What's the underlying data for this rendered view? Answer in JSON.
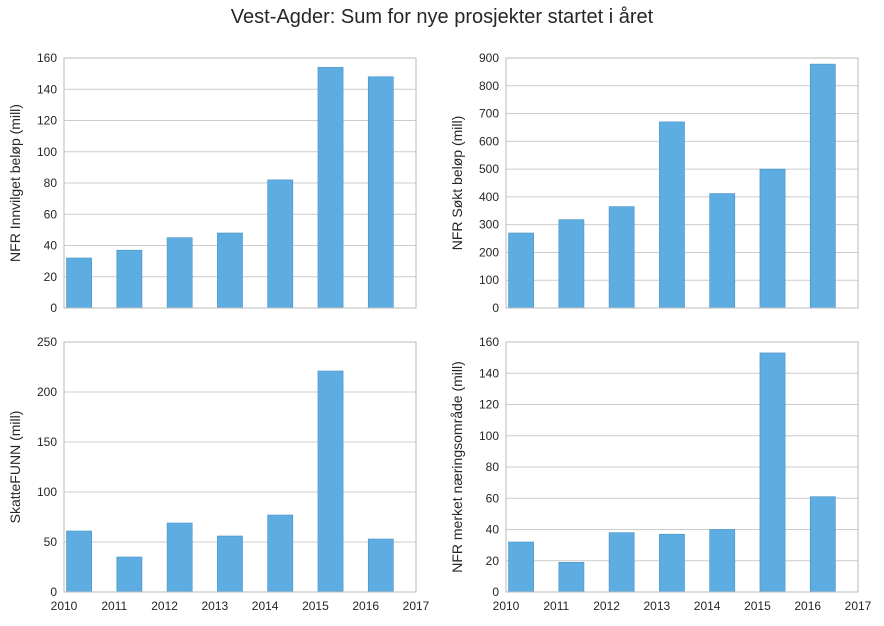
{
  "figure": {
    "suptitle": "Vest-Agder: Sum for nye prosjekter startet i året"
  },
  "style": {
    "bar_color": "#5DADE2",
    "bar_edge": "#4A90C2",
    "grid_color": "#CCCCCC",
    "axis_color": "#BBBBBB",
    "text_color": "#262626"
  },
  "chart_data": [
    {
      "type": "bar",
      "ylabel": "NFR Innvilget beløp (mill)",
      "xlim": [
        2010,
        2017
      ],
      "ylim": [
        0,
        160
      ],
      "yticks": [
        0,
        20,
        40,
        60,
        80,
        100,
        120,
        140,
        160
      ],
      "xticks": [],
      "grid": true,
      "categories": [
        2010,
        2011,
        2012,
        2013,
        2014,
        2015,
        2016
      ],
      "values": [
        32,
        37,
        45,
        48,
        82,
        154,
        148
      ]
    },
    {
      "type": "bar",
      "ylabel": "NFR Søkt beløp (mill)",
      "xlim": [
        2010,
        2017
      ],
      "ylim": [
        0,
        900
      ],
      "yticks": [
        0,
        100,
        200,
        300,
        400,
        500,
        600,
        700,
        800,
        900
      ],
      "xticks": [],
      "grid": true,
      "categories": [
        2010,
        2011,
        2012,
        2013,
        2014,
        2015,
        2016
      ],
      "values": [
        270,
        318,
        365,
        670,
        412,
        500,
        878
      ]
    },
    {
      "type": "bar",
      "ylabel": "SkatteFUNN (mill)",
      "xlim": [
        2010,
        2017
      ],
      "ylim": [
        0,
        250
      ],
      "yticks": [
        0,
        50,
        100,
        150,
        200,
        250
      ],
      "xticks": [
        2010,
        2011,
        2012,
        2013,
        2014,
        2015,
        2016,
        2017
      ],
      "grid": true,
      "categories": [
        2010,
        2011,
        2012,
        2013,
        2014,
        2015,
        2016
      ],
      "values": [
        61,
        35,
        69,
        56,
        77,
        221,
        53
      ]
    },
    {
      "type": "bar",
      "ylabel": "NFR merket næringsområde (mill)",
      "xlim": [
        2010,
        2017
      ],
      "ylim": [
        0,
        160
      ],
      "yticks": [
        0,
        20,
        40,
        60,
        80,
        100,
        120,
        140,
        160
      ],
      "xticks": [
        2010,
        2011,
        2012,
        2013,
        2014,
        2015,
        2016,
        2017
      ],
      "grid": true,
      "categories": [
        2010,
        2011,
        2012,
        2013,
        2014,
        2015,
        2016
      ],
      "values": [
        32,
        19,
        38,
        37,
        40,
        153,
        61
      ]
    }
  ]
}
